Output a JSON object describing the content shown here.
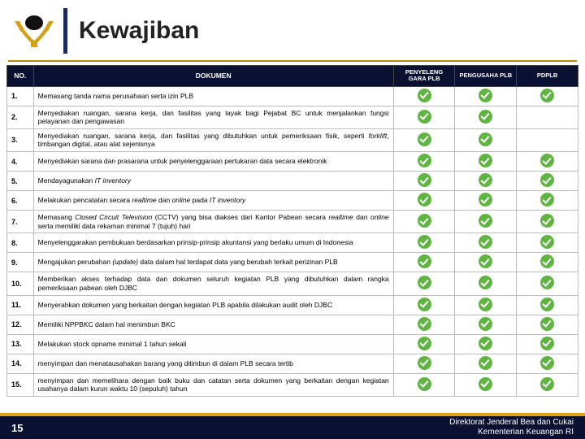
{
  "title": "Kewajiban",
  "page_number": "15",
  "footer_line1": "Direktorat Jenderal  Bea dan Cukai",
  "footer_line2": "Kementerian Keuangan RI",
  "columns": {
    "no": "NO.",
    "doc": "DOKUMEN",
    "c1": "PENYELENG GARA PLB",
    "c2": "PENGUSAHA PLB",
    "c3": "PDPLB"
  },
  "rows": [
    {
      "no": "1.",
      "doc": "Memasang tanda nama perusahaan serta izin PLB",
      "c1": true,
      "c2": true,
      "c3": true
    },
    {
      "no": "2.",
      "doc": "Menyediakan ruangan, sarana kerja, dan fasilitas yang layak bagi Pejabat BC untuk menjalankan fungsi pelayanan dan pengawasan",
      "c1": true,
      "c2": true,
      "c3": false
    },
    {
      "no": "3.",
      "doc": "Menyediakan ruangan, sarana kerja, dan fasilitas yang dibutuhkan untuk pemeriksaan fisik, seperti <em>forklift</em>, timbangan digital, atau alat sejenisnya",
      "c1": true,
      "c2": true,
      "c3": false
    },
    {
      "no": "4.",
      "doc": "Menyediakan sarana dan prasarana untuk penyelenggaraan pertukaran data secara elektronik",
      "c1": true,
      "c2": true,
      "c3": true
    },
    {
      "no": "5.",
      "doc": "Mendayagunakan <em>IT inventory</em>",
      "c1": true,
      "c2": true,
      "c3": true
    },
    {
      "no": "6.",
      "doc": "Melakukan pencatatan secara <em>realtime</em> dan <em>online</em> pada <em>IT inventory</em>",
      "c1": true,
      "c2": true,
      "c3": true
    },
    {
      "no": "7.",
      "doc": "Memasang <em>Closed Circuit Television</em> (CCTV) yang bisa diakses dari Kantor Pabean secara <em>realtime</em> dan <em>online</em> serta memiliki data rekaman minimal 7 (tujuh) hari",
      "c1": true,
      "c2": true,
      "c3": true
    },
    {
      "no": "8.",
      "doc": "Menyelenggarakan pembukuan berdasarkan prinsip-prinsip akuntansi yang berlaku umum di Indonesia",
      "c1": true,
      "c2": true,
      "c3": true
    },
    {
      "no": "9.",
      "doc": "Mengajukan perubahan <em>(update)</em> data dalam  hal terdapat data yang berubah terkait perizinan PLB",
      "c1": true,
      "c2": true,
      "c3": true
    },
    {
      "no": "10.",
      "doc": "Memberikan akses terhadap data dan dokumen seluruh kegiatan PLB yang dibutuhkan dalam rangka pemeriksaan pabean oleh DJBC",
      "c1": true,
      "c2": true,
      "c3": true
    },
    {
      "no": "11.",
      "doc": "Menyerahkan dokumen yang berkaitan dengan kegiatan PLB apabila dilakukan audit oleh DJBC",
      "c1": true,
      "c2": true,
      "c3": true
    },
    {
      "no": "12.",
      "doc": "Memiliki NPPBKC dalam hal menimbun BKC",
      "c1": true,
      "c2": true,
      "c3": true
    },
    {
      "no": "13.",
      "doc": "Melakukan stock opname minimal 1 tahun sekali",
      "c1": true,
      "c2": true,
      "c3": true
    },
    {
      "no": "14.",
      "doc": "menyimpan dan menatausahakan barang yang ditimbun di dalam PLB secara tertib",
      "c1": true,
      "c2": true,
      "c3": true
    },
    {
      "no": "15.",
      "doc": "menyimpan dan memelihara dengan baik buku dan catatan serta dokumen yang berkaitan dengan kegiatan usahanya dalam kurun waktu 10 (sepuluh) tahun",
      "c1": true,
      "c2": true,
      "c3": true
    }
  ],
  "colors": {
    "navy": "#0a1030",
    "gold": "#dba514",
    "green": "#5fb442"
  }
}
